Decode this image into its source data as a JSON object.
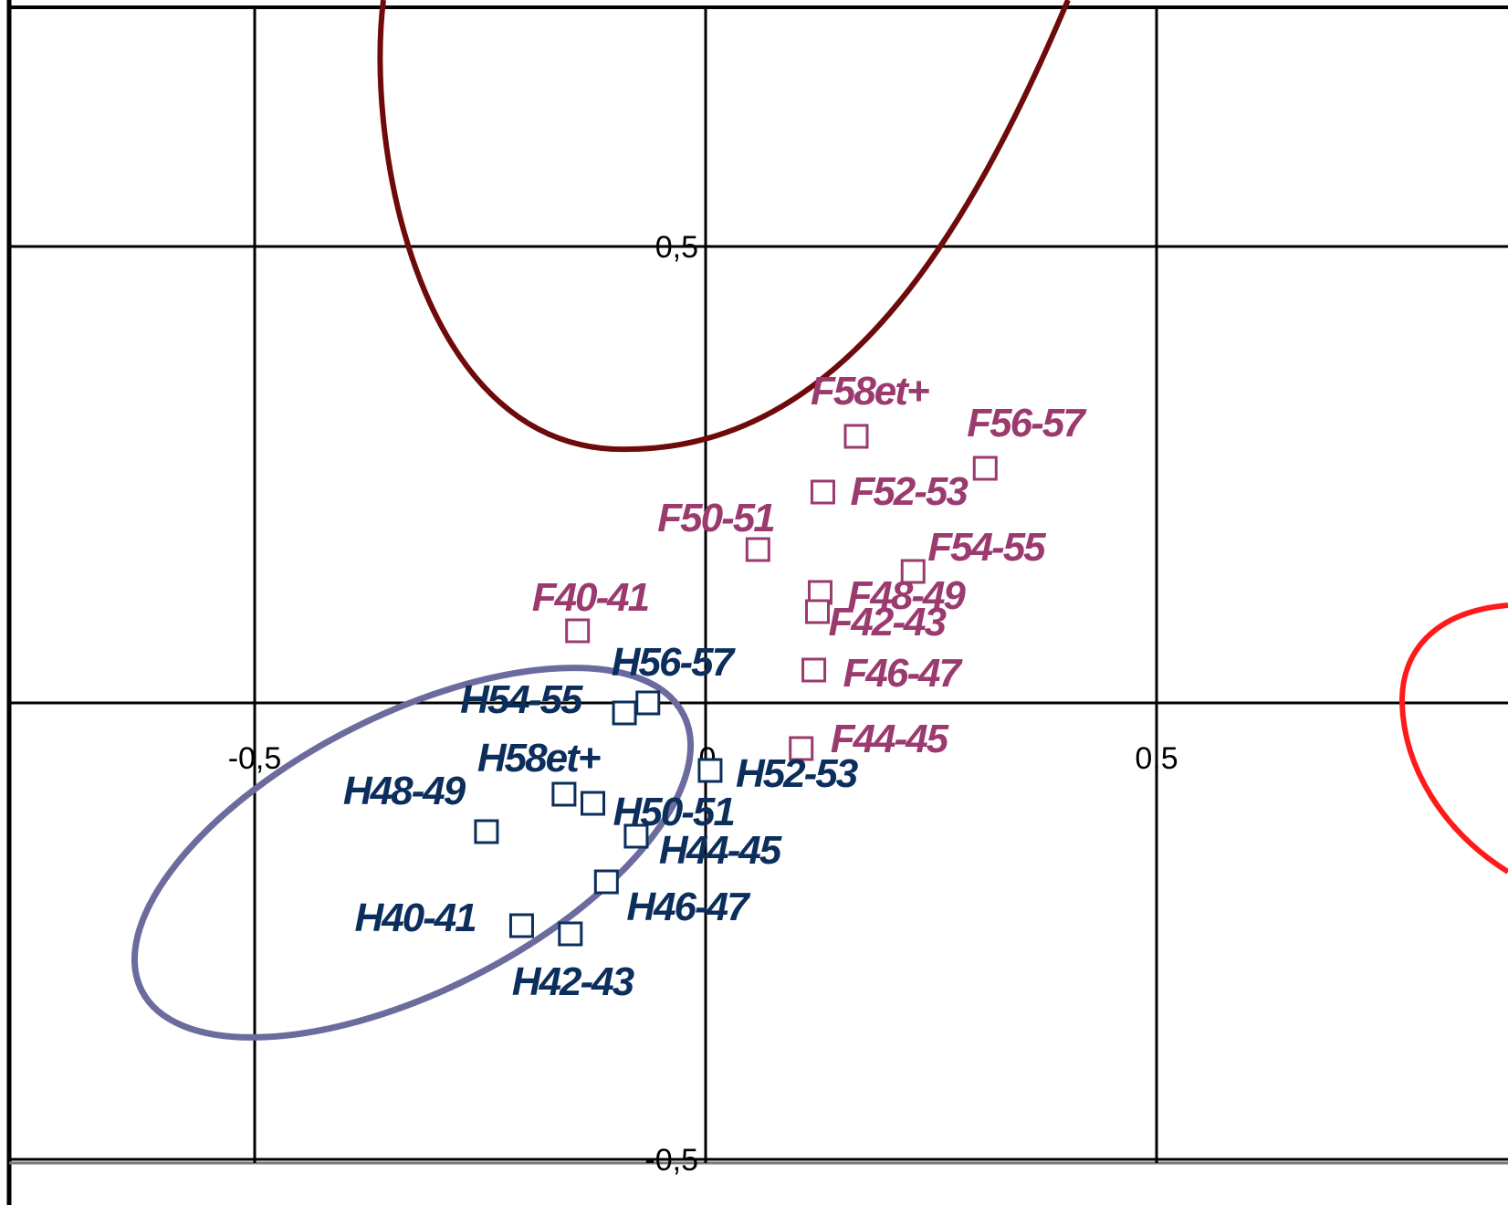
{
  "chart_data": {
    "type": "scatter",
    "title": "",
    "xlabel": "",
    "ylabel": "",
    "xlim": [
      -0.77,
      0.9
    ],
    "ylim": [
      -0.55,
      0.77
    ],
    "x_ticks": [
      {
        "value": -0.5,
        "label": "-0,5"
      },
      {
        "value": 0,
        "label": "0"
      },
      {
        "value": 0.5,
        "label": "0,5"
      }
    ],
    "y_ticks": [
      {
        "value": 0.5,
        "label": "0,5"
      },
      {
        "value": -0.5,
        "label": "-0,5"
      }
    ],
    "grid": true,
    "legend": "none",
    "colors": {
      "series_F": "#9B3A6E",
      "series_H": "#0B2E5C",
      "ellipse_top": "#6E0A0A",
      "ellipse_left": "#6B6B9E",
      "ellipse_right": "#FF1A1A",
      "axis": "#000000"
    },
    "series": [
      {
        "color": "#9B3A6E",
        "points": [
          {
            "label": "F58et+",
            "x": 0.167,
            "y": 0.292
          },
          {
            "label": "F56-57",
            "x": 0.31,
            "y": 0.257
          },
          {
            "label": "F52-53",
            "x": 0.13,
            "y": 0.231
          },
          {
            "label": "F50-51",
            "x": 0.058,
            "y": 0.168
          },
          {
            "label": "F54-55",
            "x": 0.23,
            "y": 0.144
          },
          {
            "label": "F48-49",
            "x": 0.127,
            "y": 0.121
          },
          {
            "label": "F42-43",
            "x": 0.124,
            "y": 0.1
          },
          {
            "label": "F40-41",
            "x": -0.142,
            "y": 0.079
          },
          {
            "label": "F46-47",
            "x": 0.12,
            "y": 0.036
          },
          {
            "label": "F44-45",
            "x": 0.106,
            "y": -0.05
          }
        ]
      },
      {
        "color": "#0B2E5C",
        "points": [
          {
            "label": "H56-57",
            "x": -0.064,
            "y": 0.0
          },
          {
            "label": "H54-55",
            "x": -0.09,
            "y": -0.011
          },
          {
            "label": "H52-53",
            "x": 0.005,
            "y": -0.074
          },
          {
            "label": "H58et+",
            "x": -0.157,
            "y": -0.1
          },
          {
            "label": "H50-51",
            "x": -0.125,
            "y": -0.11
          },
          {
            "label": "H48-49",
            "x": -0.243,
            "y": -0.141
          },
          {
            "label": "H44-45",
            "x": -0.077,
            "y": -0.146
          },
          {
            "label": "H46-47",
            "x": -0.11,
            "y": -0.196
          },
          {
            "label": "H40-41",
            "x": -0.204,
            "y": -0.244
          },
          {
            "label": "H42-43",
            "x": -0.15,
            "y": -0.253
          }
        ]
      }
    ]
  }
}
